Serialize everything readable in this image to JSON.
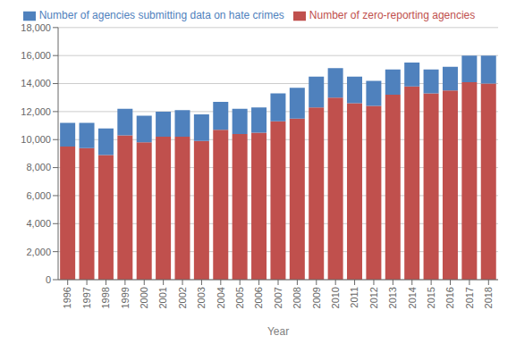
{
  "chart_data": {
    "type": "bar",
    "stacked": true,
    "categories": [
      "1996",
      "1997",
      "1998",
      "1999",
      "2000",
      "2001",
      "2002",
      "2003",
      "2004",
      "2005",
      "2006",
      "2007",
      "2008",
      "2009",
      "2010",
      "2011",
      "2012",
      "2013",
      "2014",
      "2015",
      "2016",
      "2017",
      "2018"
    ],
    "series": [
      {
        "name": "Number of zero-reporting agencies",
        "color": "#C0504D",
        "values": [
          9500,
          9400,
          8900,
          10300,
          9800,
          10200,
          10200,
          9900,
          10700,
          10400,
          10500,
          11300,
          11500,
          12300,
          13000,
          12600,
          12400,
          13200,
          13800,
          13300,
          13500,
          14100,
          14000
        ]
      },
      {
        "name": "Number of agencies submitting data on hate crimes",
        "color": "#4F81BD",
        "values": [
          1700,
          1800,
          1900,
          1900,
          1900,
          1800,
          1900,
          1900,
          2000,
          1800,
          1800,
          2000,
          2200,
          2200,
          2100,
          1900,
          1800,
          1800,
          1700,
          1700,
          1700,
          1900,
          2000
        ]
      }
    ],
    "xlabel": "Year",
    "ylim": [
      0,
      18000
    ],
    "yticks": [
      0,
      {
        "value": 2000,
        "label": "2,000"
      },
      {
        "value": 4000,
        "label": "4,000"
      },
      {
        "value": 6000,
        "label": "6,000"
      },
      {
        "value": 8000,
        "label": "8,000"
      },
      {
        "value": 10000,
        "label": "10,000"
      },
      {
        "value": 12000,
        "label": "12,000"
      },
      {
        "value": 14000,
        "label": "14,000"
      },
      {
        "value": 16000,
        "label": "16,000"
      },
      {
        "value": 18000,
        "label": "18,000"
      }
    ],
    "grid": true,
    "legend": "top"
  }
}
